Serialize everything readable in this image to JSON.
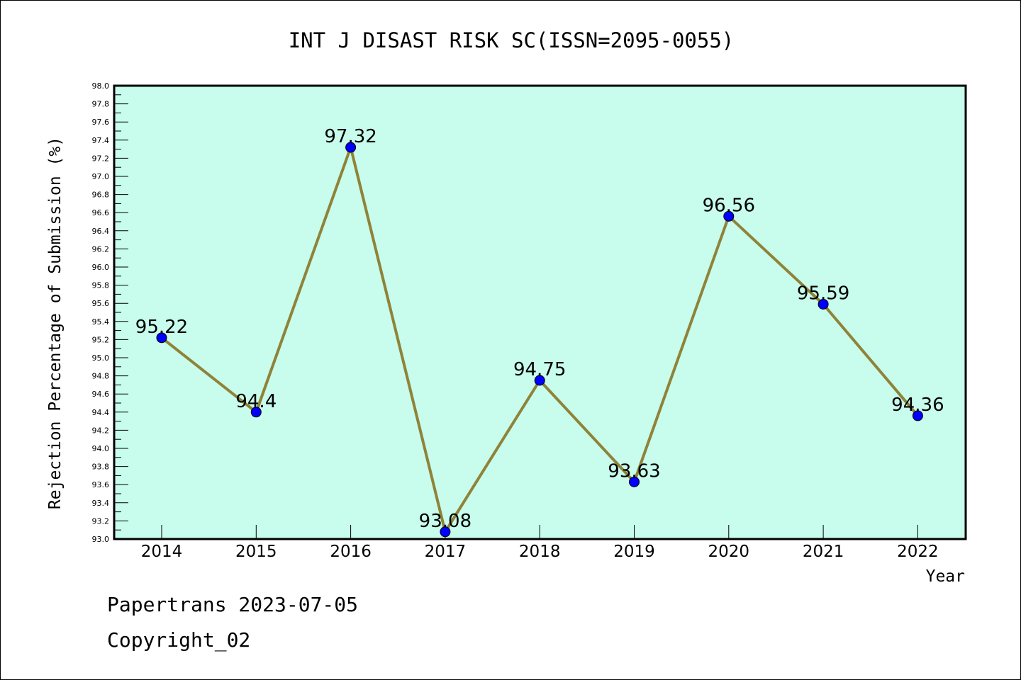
{
  "chart_data": {
    "type": "line",
    "title": "INT J DISAST RISK SC(ISSN=2095-0055)",
    "xlabel": "Year",
    "ylabel": "Rejection Percentage of Submission (%)",
    "categories": [
      "2014",
      "2015",
      "2016",
      "2017",
      "2018",
      "2019",
      "2020",
      "2021",
      "2022"
    ],
    "series": [
      {
        "values": [
          95.22,
          94.4,
          97.32,
          93.08,
          94.75,
          93.63,
          96.56,
          95.59,
          94.36
        ],
        "data_labels": [
          "95.22",
          "94.4",
          "97.32",
          "93.08",
          "94.75",
          "93.63",
          "96.56",
          "95.59",
          "94.36"
        ]
      }
    ],
    "ylim": [
      93.0,
      98.0
    ],
    "yticks": [
      "93.0",
      "93.2",
      "93.4",
      "93.6",
      "93.8",
      "94.0",
      "94.2",
      "94.4",
      "94.6",
      "94.8",
      "95.0",
      "95.2",
      "95.4",
      "95.6",
      "95.8",
      "96.0",
      "96.2",
      "96.4",
      "96.6",
      "96.8",
      "97.0",
      "97.2",
      "97.4",
      "97.6",
      "97.8",
      "98.0"
    ],
    "grid": false,
    "colors": {
      "plot_background": "#c8fcec",
      "line": "#8f8339",
      "marker": "#0000ff"
    }
  },
  "footer": {
    "line1": "Papertrans 2023-07-05",
    "line2": "Copyright_02"
  }
}
